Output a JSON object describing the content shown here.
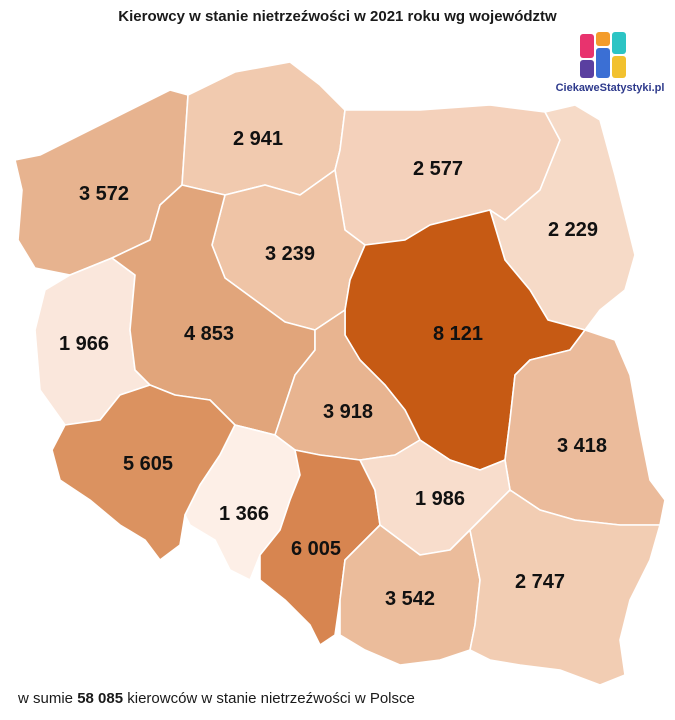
{
  "title": "Kierowcy w stanie nietrzeźwości w 2021 roku wg województw",
  "logo": {
    "text": "CiekaweStatystyki.pl",
    "colors": [
      "#e8336e",
      "#f39c2b",
      "#2cc4c4",
      "#5a3fa0",
      "#3b6fd4",
      "#f2c12e"
    ]
  },
  "regions": [
    {
      "id": "zachodniopomorskie",
      "value": "3 572",
      "color": "#e7b38f"
    },
    {
      "id": "pomorskie",
      "value": "2 941",
      "color": "#f1caaf"
    },
    {
      "id": "warminsko-mazurskie",
      "value": "2 577",
      "color": "#f4d1bb"
    },
    {
      "id": "podlaskie",
      "value": "2 229",
      "color": "#f6dac7"
    },
    {
      "id": "kujawsko-pomorskie",
      "value": "3 239",
      "color": "#efc4a6"
    },
    {
      "id": "lubuskie",
      "value": "1 966",
      "color": "#fae7dc"
    },
    {
      "id": "wielkopolskie",
      "value": "4 853",
      "color": "#e1a57b"
    },
    {
      "id": "mazowieckie",
      "value": "8 121",
      "color": "#c65a14"
    },
    {
      "id": "lodzkie",
      "value": "3 918",
      "color": "#e8b490"
    },
    {
      "id": "lubelskie",
      "value": "3 418",
      "color": "#ebbb9b"
    },
    {
      "id": "dolnoslaskie",
      "value": "5 605",
      "color": "#db9260"
    },
    {
      "id": "opolskie",
      "value": "1 366",
      "color": "#fdefe7"
    },
    {
      "id": "slaskie",
      "value": "6 005",
      "color": "#d78550"
    },
    {
      "id": "swietokrzyskie",
      "value": "1 986",
      "color": "#f8ddcc"
    },
    {
      "id": "malopolskie",
      "value": "3 542",
      "color": "#ebbc9b"
    },
    {
      "id": "podkarpackie",
      "value": "2 747",
      "color": "#f2cdb3"
    }
  ],
  "footer": {
    "prefix": "w sumie ",
    "total": "58 085",
    "suffix": " kierowców w stanie nietrzeźwości w Polsce"
  }
}
